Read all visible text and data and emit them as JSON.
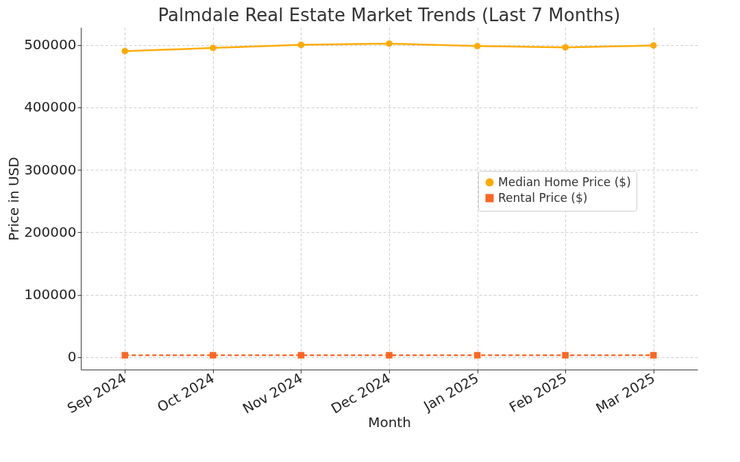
{
  "chart_data": {
    "type": "line",
    "title": "Palmdale Real Estate Market Trends (Last 7 Months)",
    "xlabel": "Month",
    "ylabel": "Price in USD",
    "categories": [
      "Sep 2024",
      "Oct 2024",
      "Nov 2024",
      "Dec 2024",
      "Jan 2025",
      "Feb 2025",
      "Mar 2025"
    ],
    "series": [
      {
        "name": "Median Home Price ($)",
        "color": "#ffaa00",
        "marker": "circle",
        "line_style": "solid",
        "values": [
          490000,
          495000,
          500000,
          502000,
          498000,
          496000,
          499000
        ]
      },
      {
        "name": "Rental Price ($)",
        "color": "#ff6622",
        "marker": "square",
        "line_style": "dashed",
        "values": [
          3000,
          3000,
          3000,
          3000,
          3000,
          3000,
          3000
        ]
      }
    ],
    "ylim": [
      -20000,
      528000
    ],
    "yticks": [
      0,
      100000,
      200000,
      300000,
      400000,
      500000
    ],
    "grid": true,
    "legend": "right"
  }
}
